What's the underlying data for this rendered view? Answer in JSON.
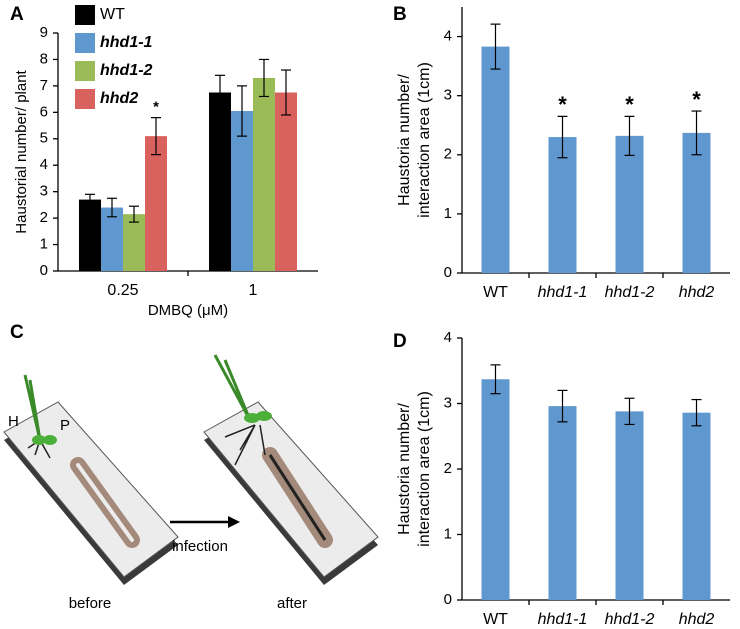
{
  "chart_data": [
    {
      "panel": "A",
      "type": "bar",
      "ylabel": "Haustorial number/ plant",
      "xlabel": "DMBQ (μM)",
      "categories": [
        "0.25",
        "1"
      ],
      "ylim": [
        0,
        9
      ],
      "yticks": [
        0,
        1,
        2,
        3,
        4,
        5,
        6,
        7,
        8,
        9
      ],
      "series": [
        {
          "name": "WT",
          "color": "#000000",
          "values": [
            2.7,
            6.75
          ],
          "errors": [
            0.2,
            0.65
          ]
        },
        {
          "name": "hhd1-1",
          "color": "#5f97cf",
          "values": [
            2.4,
            6.05
          ],
          "errors": [
            0.35,
            0.95
          ]
        },
        {
          "name": "hhd1-2",
          "color": "#9bbb59",
          "values": [
            2.15,
            7.3
          ],
          "errors": [
            0.3,
            0.7
          ]
        },
        {
          "name": "hhd2",
          "color": "#d9625e",
          "values": [
            5.1,
            6.75
          ],
          "errors": [
            0.7,
            0.85
          ],
          "markers": [
            "*",
            null
          ]
        }
      ]
    },
    {
      "panel": "B",
      "type": "bar",
      "ylabel": [
        "Haustoria number/",
        "interaction area (1cm)"
      ],
      "categories": [
        "WT",
        "hhd1-1",
        "hhd1-2",
        "hhd2"
      ],
      "ylim": [
        0,
        4.5
      ],
      "yticks": [
        0,
        1,
        2,
        3,
        4
      ],
      "series": [
        {
          "color": "#5f97cf",
          "values": [
            3.83,
            2.3,
            2.32,
            2.37
          ],
          "errors": [
            0.38,
            0.35,
            0.33,
            0.37
          ],
          "markers": [
            null,
            "*",
            "*",
            "*"
          ]
        }
      ]
    },
    {
      "panel": "D",
      "type": "bar",
      "ylabel": [
        "Haustoria number/",
        "interaction area (1cm)"
      ],
      "categories": [
        "WT",
        "hhd1-1",
        "hhd1-2",
        "hhd2"
      ],
      "ylim": [
        0,
        4
      ],
      "yticks": [
        0,
        1,
        2,
        3,
        4
      ],
      "series": [
        {
          "color": "#5f97cf",
          "values": [
            3.37,
            2.96,
            2.88,
            2.86
          ],
          "errors": [
            0.22,
            0.24,
            0.2,
            0.2
          ]
        }
      ]
    }
  ],
  "diagram": {
    "panel": "C",
    "labels": {
      "host": "H",
      "parasite": "P",
      "arrow": "infection",
      "before": "before",
      "after": "after"
    }
  }
}
